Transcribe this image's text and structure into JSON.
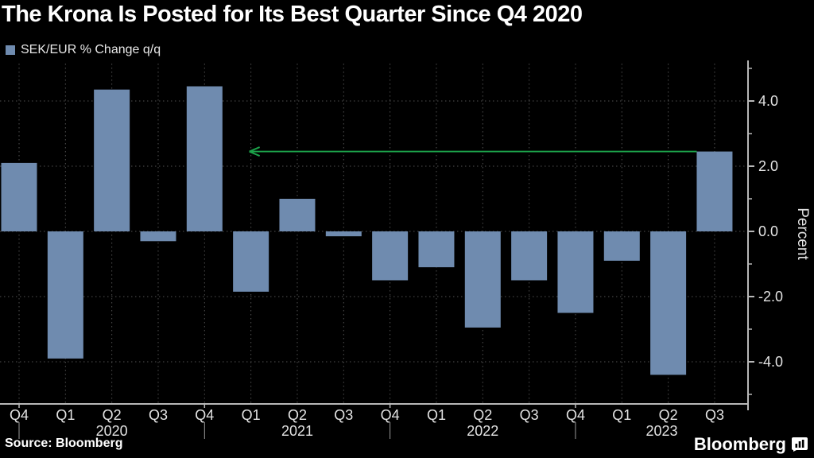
{
  "header": {
    "title": "The Krona Is Posted for Its Best Quarter Since Q4 2020"
  },
  "legend": {
    "label": "SEK/EUR % Change q/q",
    "swatch_color": "#6F8BAF"
  },
  "chart_data": {
    "type": "bar",
    "title": "The Krona Is Posted for Its Best Quarter Since Q4 2020",
    "series_name": "SEK/EUR % Change q/q",
    "categories": [
      "Q4 2019",
      "Q1 2020",
      "Q2 2020",
      "Q3 2020",
      "Q4 2020",
      "Q1 2021",
      "Q2 2021",
      "Q3 2021",
      "Q4 2021",
      "Q1 2022",
      "Q2 2022",
      "Q3 2022",
      "Q4 2022",
      "Q1 2023",
      "Q2 2023",
      "Q3 2023"
    ],
    "x_tick_labels": [
      "Q4",
      "Q1",
      "Q2",
      "Q3",
      "Q4",
      "Q1",
      "Q2",
      "Q3",
      "Q4",
      "Q1",
      "Q2",
      "Q3",
      "Q4",
      "Q1",
      "Q2",
      "Q3"
    ],
    "values": [
      2.1,
      -3.9,
      4.35,
      -0.3,
      4.45,
      -1.85,
      1.0,
      -0.15,
      -1.5,
      -1.1,
      -2.95,
      -1.5,
      -2.5,
      -0.9,
      -4.4,
      2.45
    ],
    "year_labels": [
      "2020",
      "2021",
      "2022",
      "2023"
    ],
    "year_divider_indices": [
      0,
      4,
      8,
      12
    ],
    "xlabel": "",
    "ylabel": "Percent",
    "ylim": [
      -5.3,
      5.1
    ],
    "y_axis_side": "right",
    "y_major_ticks": [
      {
        "value": 4,
        "label": "4.0"
      },
      {
        "value": 2,
        "label": "2.0"
      },
      {
        "value": 0,
        "label": "0.0"
      },
      {
        "value": -2,
        "label": "-2.0"
      },
      {
        "value": -4,
        "label": "-4.0"
      }
    ],
    "y_minor_ticks": [
      5,
      3,
      1,
      -1,
      -3,
      -5
    ],
    "grid": {
      "horizontal_at": [
        4,
        2,
        0,
        -2,
        -4
      ],
      "vertical": "every_quarter",
      "style": "dotted"
    },
    "legend_position": "top-left",
    "bar_color": "#6F8BAF",
    "annotation_arrow": {
      "shape": "horizontal-left-arrow",
      "color": "#1CA24A",
      "y_value": 2.45,
      "from_category_index": 15,
      "to_category_index": 5
    },
    "colors": {
      "background": "#000000",
      "grid": "#4f4f4f",
      "axis": "#b8b8b8",
      "tick_text": "#e3e3e3",
      "title_text": "#ffffff"
    }
  },
  "footer": {
    "source": "Source: Bloomberg",
    "brand": "Bloomberg"
  }
}
